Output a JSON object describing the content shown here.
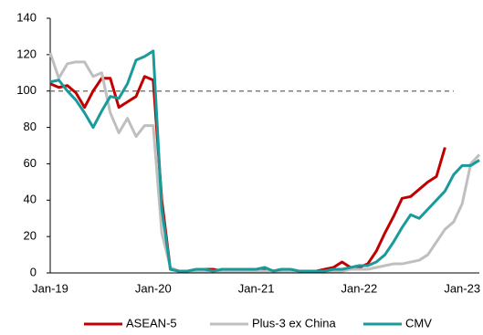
{
  "chart_data": {
    "type": "line",
    "categories": [
      "Jan-19",
      null,
      null,
      null,
      null,
      null,
      null,
      null,
      null,
      null,
      null,
      null,
      "Jan-20",
      null,
      null,
      null,
      null,
      null,
      null,
      null,
      null,
      null,
      null,
      null,
      "Jan-21",
      null,
      null,
      null,
      null,
      null,
      null,
      null,
      null,
      null,
      null,
      null,
      "Jan-22",
      null,
      null,
      null,
      null,
      null,
      null,
      null,
      null,
      null,
      null,
      null,
      "Jan-23",
      null,
      null
    ],
    "series": [
      {
        "name": "ASEAN-5",
        "color": "#c00000",
        "values": [
          104,
          102,
          103,
          99,
          91,
          100,
          107,
          107,
          91,
          94,
          97,
          108,
          106,
          40,
          2,
          1,
          1,
          1,
          2,
          2,
          1,
          2,
          2,
          2,
          2,
          2,
          1,
          2,
          1,
          1,
          1,
          1,
          2,
          3,
          6,
          3,
          3,
          5,
          12,
          22,
          31,
          41,
          42,
          46,
          50,
          53,
          69,
          null,
          null,
          null,
          null
        ]
      },
      {
        "name": "Plus-3 ex China",
        "color": "#bfbfbf",
        "values": [
          121,
          107,
          115,
          116,
          116,
          108,
          110,
          88,
          77,
          85,
          75,
          81,
          81,
          22,
          3,
          1,
          1,
          1,
          1,
          1,
          1,
          1,
          1,
          1,
          1,
          1,
          1,
          1,
          1,
          1,
          1,
          1,
          1,
          1,
          1,
          2,
          2,
          2,
          3,
          4,
          5,
          5,
          6,
          7,
          10,
          17,
          24,
          28,
          38,
          60,
          65
        ]
      },
      {
        "name": "CMV",
        "color": "#1a9a9a",
        "values": [
          105,
          106,
          100,
          95,
          88,
          80,
          89,
          97,
          96,
          104,
          117,
          119,
          122,
          35,
          2,
          1,
          1,
          2,
          2,
          1,
          2,
          2,
          2,
          2,
          2,
          3,
          1,
          2,
          2,
          1,
          1,
          1,
          1,
          2,
          2,
          3,
          4,
          4,
          6,
          10,
          17,
          25,
          32,
          30,
          35,
          40,
          45,
          54,
          59,
          59,
          62
        ]
      }
    ],
    "ylim": [
      0,
      140
    ],
    "yticks": [
      0,
      20,
      40,
      60,
      80,
      100,
      120,
      140
    ],
    "reference_line": 100,
    "legend": "bottom"
  }
}
